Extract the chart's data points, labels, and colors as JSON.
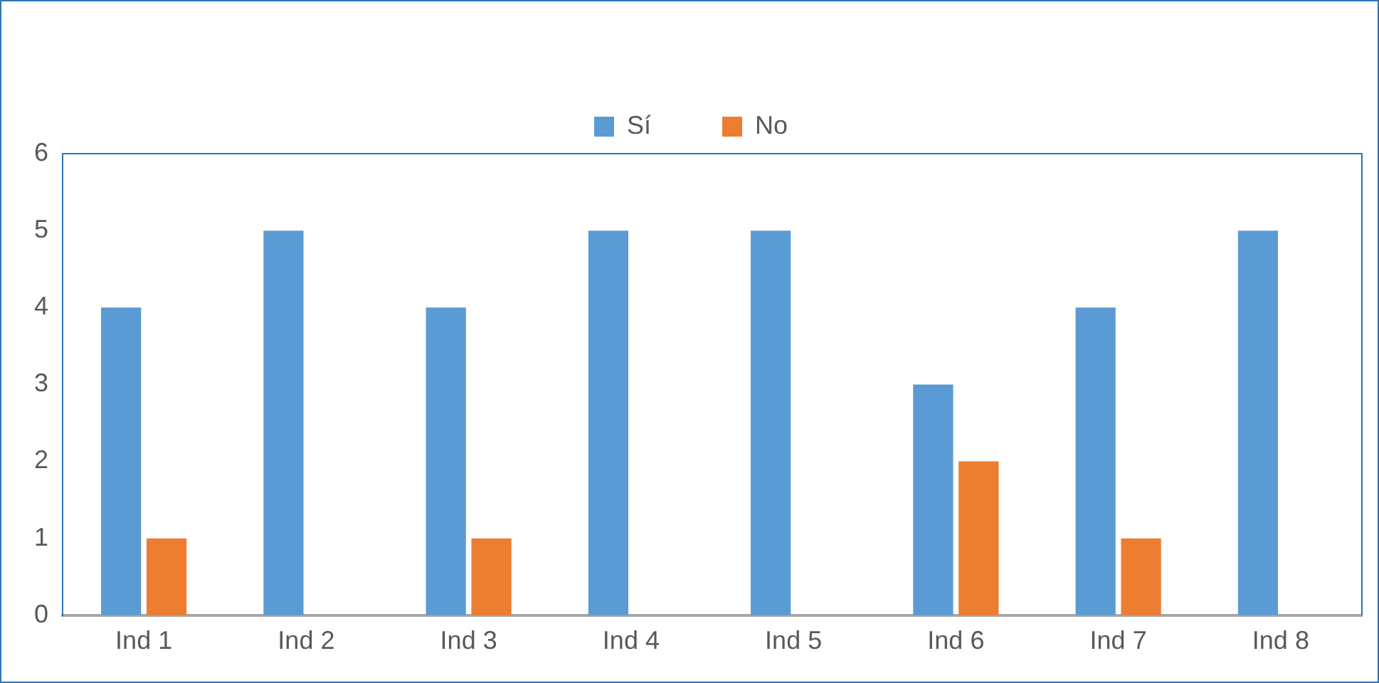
{
  "chart_data": {
    "type": "bar",
    "categories": [
      "Ind 1",
      "Ind 2",
      "Ind 3",
      "Ind 4",
      "Ind 5",
      "Ind 6",
      "Ind 7",
      "Ind 8"
    ],
    "series": [
      {
        "name": "Sí",
        "color": "#5b9bd5",
        "values": [
          4,
          5,
          4,
          5,
          5,
          3,
          4,
          5
        ]
      },
      {
        "name": "No",
        "color": "#ed7d31",
        "values": [
          1,
          0,
          1,
          0,
          0,
          2,
          1,
          0
        ]
      }
    ],
    "ylim": [
      0,
      6
    ],
    "yticks": [
      0,
      1,
      2,
      3,
      4,
      5,
      6
    ],
    "grid": false,
    "legend": "top"
  }
}
